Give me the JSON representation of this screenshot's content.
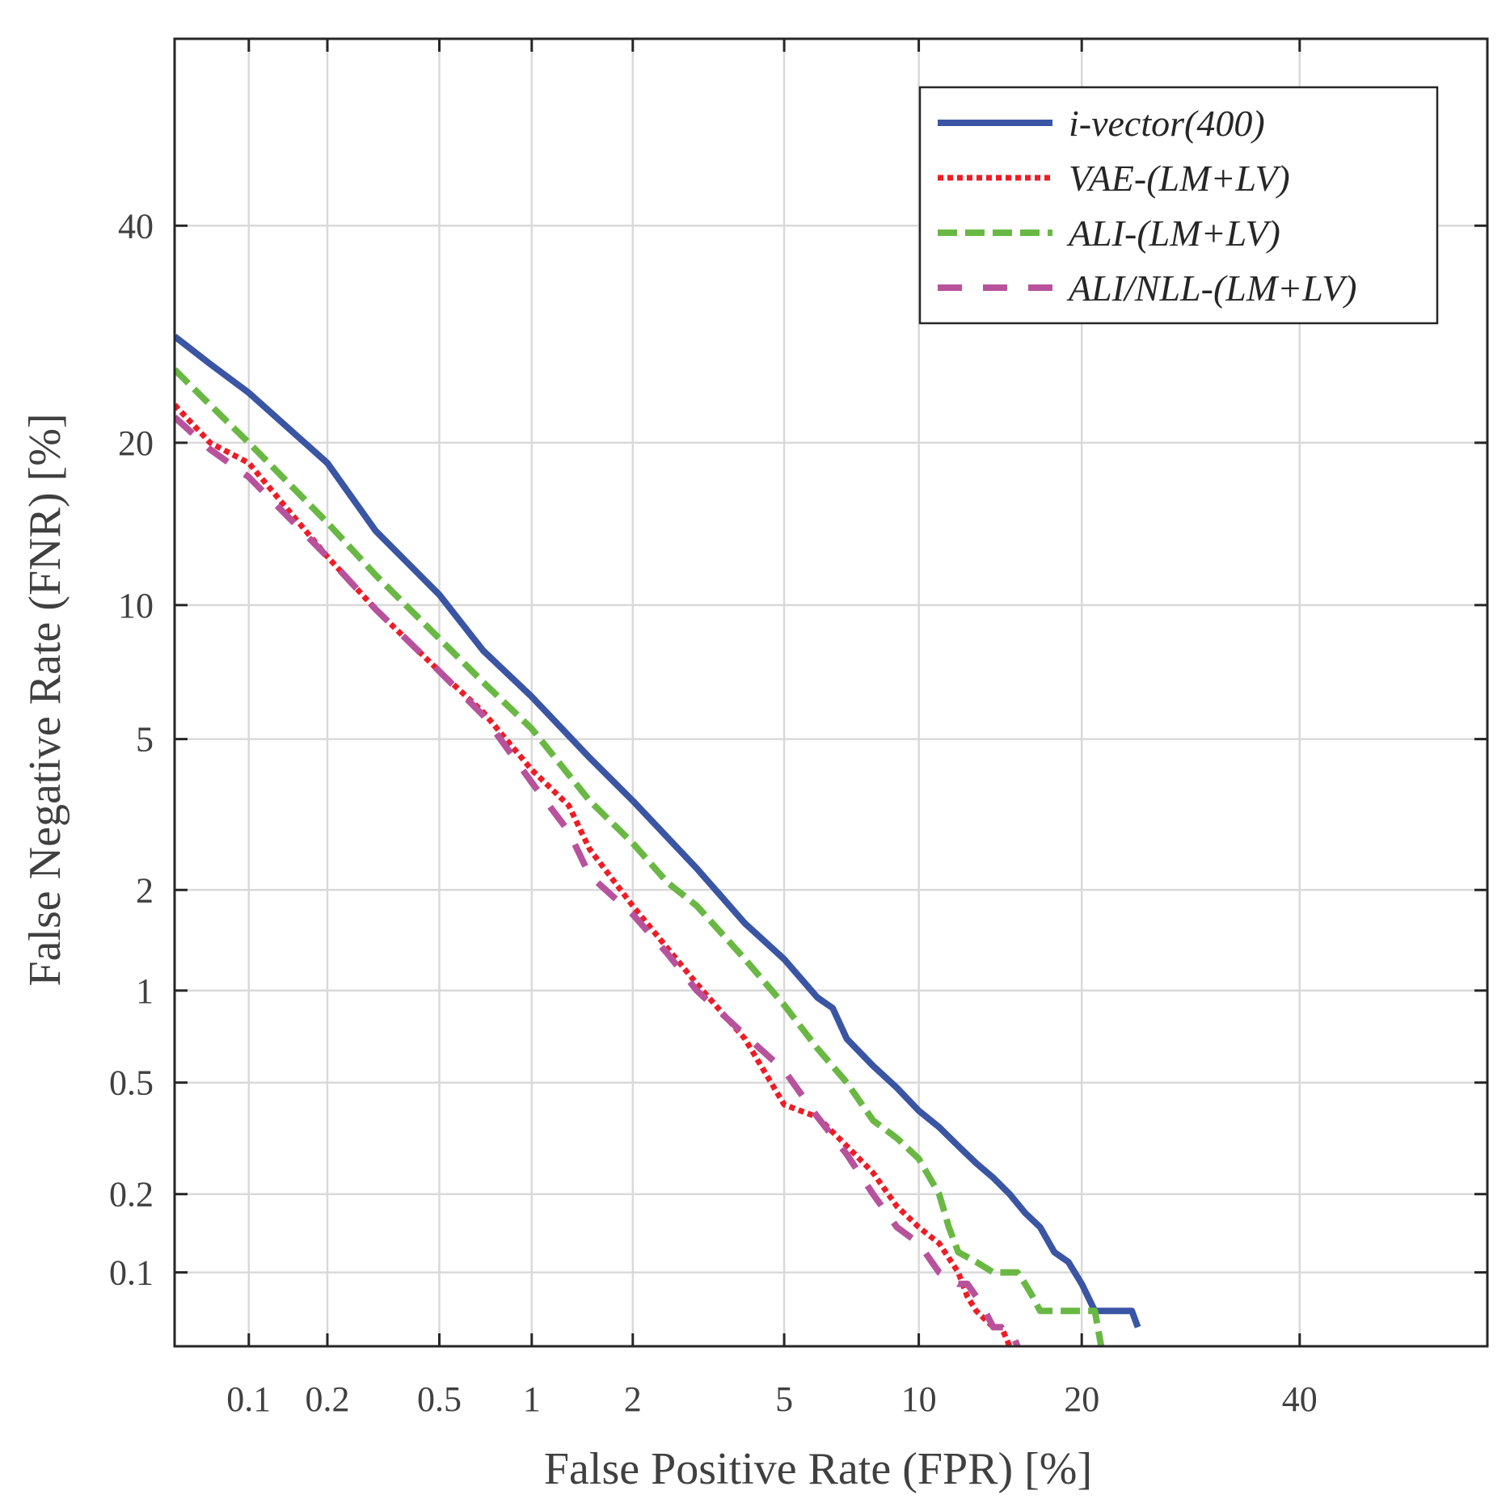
{
  "chart_data": {
    "type": "line",
    "xlabel": "False Positive Rate (FPR) [%]",
    "ylabel": "False Negative Rate (FNR) [%]",
    "scale": "normal-deviate (DET)",
    "xlim": [
      0.05,
      60
    ],
    "ylim": [
      0.05,
      60
    ],
    "x_ticks": [
      0.1,
      0.2,
      0.5,
      1,
      2,
      5,
      10,
      20,
      40
    ],
    "x_tick_labels": [
      "0.1",
      "0.2",
      "0.5",
      "1",
      "2",
      "5",
      "10",
      "20",
      "40"
    ],
    "y_ticks": [
      0.1,
      0.2,
      0.5,
      1,
      2,
      5,
      10,
      20,
      40
    ],
    "y_tick_labels": [
      "0.1",
      "0.2",
      "0.5",
      "1",
      "2",
      "5",
      "10",
      "20",
      "40"
    ],
    "grid": true,
    "legend_position": "top-right",
    "series": [
      {
        "name": "i-vector(400)",
        "color": "#3a55a4",
        "style": "solid",
        "x": [
          0.05,
          0.07,
          0.1,
          0.2,
          0.3,
          0.5,
          0.7,
          1,
          1.5,
          2,
          3,
          4,
          5,
          6,
          6.5,
          7,
          8,
          9,
          10,
          11,
          12,
          13,
          14,
          15,
          16,
          17,
          18,
          19,
          20,
          21,
          24,
          24.5
        ],
        "y": [
          29,
          26.5,
          24,
          18.5,
          14,
          10.5,
          8,
          6.3,
          4.5,
          3.5,
          2.3,
          1.6,
          1.25,
          0.95,
          0.88,
          0.7,
          0.57,
          0.48,
          0.4,
          0.35,
          0.3,
          0.26,
          0.23,
          0.2,
          0.17,
          0.15,
          0.12,
          0.11,
          0.09,
          0.07,
          0.07,
          0.06
        ]
      },
      {
        "name": "VAE-(LM+LV)",
        "color": "#ee1c25",
        "style": "dotted",
        "x": [
          0.05,
          0.07,
          0.1,
          0.2,
          0.3,
          0.5,
          0.7,
          1,
          1.3,
          1.5,
          2,
          2.5,
          3,
          4,
          5,
          6,
          7,
          8,
          9,
          10,
          11,
          12,
          12.5,
          13,
          14,
          14.5,
          15
        ],
        "y": [
          23,
          20,
          18.5,
          12.5,
          9.8,
          7.2,
          5.8,
          4.2,
          3.4,
          2.6,
          1.8,
          1.35,
          1.05,
          0.7,
          0.42,
          0.38,
          0.3,
          0.24,
          0.18,
          0.15,
          0.13,
          0.1,
          0.08,
          0.07,
          0.06,
          0.06,
          0.05
        ]
      },
      {
        "name": "ALI-(LM+LV)",
        "color": "#6ab844",
        "style": "dashed",
        "x": [
          0.05,
          0.07,
          0.1,
          0.2,
          0.3,
          0.5,
          0.7,
          1,
          1.5,
          2,
          2.5,
          3,
          4,
          5,
          6,
          7,
          8,
          9,
          10,
          11,
          11.5,
          12,
          13,
          14,
          15,
          15.5,
          16,
          16.5,
          17,
          18,
          19,
          20,
          21,
          21.5
        ],
        "y": [
          26,
          23,
          20,
          14.5,
          11.5,
          8.5,
          6.8,
          5.3,
          3.5,
          2.7,
          2.1,
          1.8,
          1.25,
          0.9,
          0.65,
          0.5,
          0.37,
          0.32,
          0.27,
          0.2,
          0.15,
          0.12,
          0.11,
          0.1,
          0.1,
          0.1,
          0.09,
          0.08,
          0.07,
          0.07,
          0.07,
          0.07,
          0.07,
          0.05
        ]
      },
      {
        "name": "ALI/NLL-(LM+LV)",
        "color": "#b8529c",
        "style": "long-dashed",
        "x": [
          0.05,
          0.07,
          0.1,
          0.2,
          0.3,
          0.5,
          0.7,
          1,
          1.3,
          1.5,
          2,
          2.5,
          3,
          4,
          5,
          6,
          7,
          8,
          9,
          10,
          11,
          12,
          12.5,
          13,
          13.5,
          14,
          14.5,
          15,
          15.5
        ],
        "y": [
          22,
          19.5,
          17.5,
          12.5,
          9.8,
          7.2,
          5.7,
          3.9,
          2.9,
          2.2,
          1.7,
          1.3,
          1.0,
          0.72,
          0.55,
          0.38,
          0.28,
          0.2,
          0.15,
          0.13,
          0.1,
          0.09,
          0.09,
          0.08,
          0.07,
          0.06,
          0.06,
          0.06,
          0.05
        ]
      }
    ]
  }
}
